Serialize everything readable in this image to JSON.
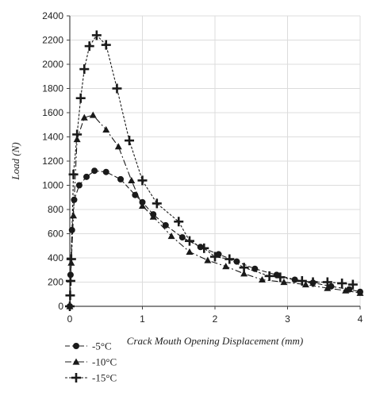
{
  "chart_data": {
    "type": "line",
    "xlabel": "Crack Mouth Opening Displacement (mm)",
    "ylabel": "Load (N)",
    "xlim": [
      0,
      4
    ],
    "ylim": [
      0,
      2400
    ],
    "xticks": [
      0,
      1,
      2,
      3,
      4
    ],
    "yticks": [
      0,
      200,
      400,
      600,
      800,
      1000,
      1200,
      1400,
      1600,
      1800,
      2000,
      2200,
      2400
    ],
    "grid": true,
    "legend_position": "bottom-left",
    "series": [
      {
        "name": "-5°C",
        "marker": "circle",
        "dash": "6,3",
        "x": [
          0,
          0.01,
          0.03,
          0.06,
          0.13,
          0.23,
          0.34,
          0.5,
          0.7,
          0.9,
          1.0,
          1.15,
          1.32,
          1.55,
          1.8,
          2.05,
          2.3,
          2.55,
          2.85,
          3.1,
          3.35,
          3.6,
          3.85,
          4.0
        ],
        "y": [
          0,
          260,
          630,
          880,
          1000,
          1070,
          1120,
          1110,
          1050,
          920,
          860,
          760,
          670,
          570,
          490,
          430,
          370,
          310,
          260,
          220,
          195,
          165,
          140,
          120
        ]
      },
      {
        "name": "-10°C",
        "marker": "triangle",
        "dash": "8,3,2,3",
        "x": [
          0,
          0.02,
          0.05,
          0.1,
          0.2,
          0.32,
          0.5,
          0.67,
          0.85,
          1.0,
          1.15,
          1.4,
          1.65,
          1.9,
          2.15,
          2.4,
          2.65,
          2.95,
          3.25,
          3.55,
          3.8,
          4.0
        ],
        "y": [
          0,
          360,
          750,
          1380,
          1560,
          1580,
          1460,
          1320,
          1040,
          830,
          740,
          580,
          450,
          380,
          330,
          270,
          220,
          200,
          180,
          150,
          130,
          110
        ]
      },
      {
        "name": "-15°C",
        "marker": "plus",
        "dash": "3,2",
        "x": [
          0,
          0.005,
          0.01,
          0.02,
          0.05,
          0.1,
          0.15,
          0.2,
          0.27,
          0.37,
          0.5,
          0.65,
          0.82,
          1.0,
          1.2,
          1.5,
          1.65,
          1.85,
          2.0,
          2.2,
          2.4,
          2.75,
          2.9,
          3.2,
          3.35,
          3.55,
          3.75,
          3.9
        ],
        "y": [
          0,
          90,
          210,
          390,
          1090,
          1420,
          1720,
          1960,
          2150,
          2240,
          2160,
          1800,
          1370,
          1040,
          850,
          700,
          540,
          480,
          410,
          390,
          320,
          250,
          240,
          210,
          200,
          200,
          190,
          180
        ]
      }
    ]
  }
}
